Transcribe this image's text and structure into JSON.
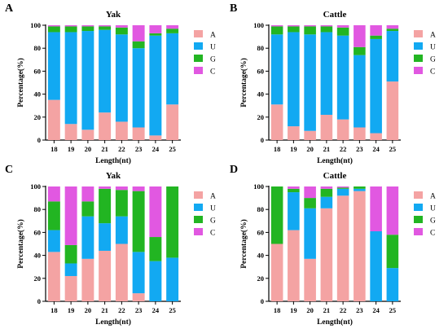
{
  "chart_data": [
    {
      "type": "bar",
      "stacked": true,
      "panel_letter": "A",
      "title": "Yak",
      "xlabel": "Length(nt)",
      "ylabel": "Percentage(%)",
      "ylim": [
        0,
        100
      ],
      "yticks": [
        0,
        20,
        40,
        60,
        80,
        100
      ],
      "categories": [
        "18",
        "19",
        "20",
        "21",
        "22",
        "23",
        "24",
        "25"
      ],
      "legend_position": "right",
      "series": [
        {
          "name": "A",
          "color": "#f4a3a3",
          "values": [
            35,
            14,
            9,
            24,
            16,
            11,
            4,
            31
          ]
        },
        {
          "name": "U",
          "color": "#12a9f2",
          "values": [
            59,
            80,
            86,
            72,
            76,
            69,
            87,
            62
          ]
        },
        {
          "name": "G",
          "color": "#22b522",
          "values": [
            5,
            5,
            4,
            3,
            6,
            6,
            2,
            4
          ]
        },
        {
          "name": "C",
          "color": "#e158e1",
          "values": [
            1,
            1,
            1,
            1,
            2,
            14,
            7,
            3
          ]
        }
      ]
    },
    {
      "type": "bar",
      "stacked": true,
      "panel_letter": "B",
      "title": "Cattle",
      "xlabel": "Length(nt)",
      "ylabel": "Percentage(%)",
      "ylim": [
        0,
        100
      ],
      "yticks": [
        0,
        20,
        40,
        60,
        80,
        100
      ],
      "categories": [
        "18",
        "19",
        "20",
        "21",
        "22",
        "23",
        "24",
        "25"
      ],
      "legend_position": "right",
      "series": [
        {
          "name": "A",
          "color": "#f4a3a3",
          "values": [
            31,
            12,
            8,
            22,
            18,
            11,
            6,
            51
          ]
        },
        {
          "name": "U",
          "color": "#12a9f2",
          "values": [
            61,
            82,
            84,
            72,
            73,
            63,
            82,
            44
          ]
        },
        {
          "name": "G",
          "color": "#22b522",
          "values": [
            7,
            5,
            7,
            5,
            7,
            7,
            3,
            2
          ]
        },
        {
          "name": "C",
          "color": "#e158e1",
          "values": [
            1,
            1,
            1,
            1,
            2,
            19,
            9,
            3
          ]
        }
      ]
    },
    {
      "type": "bar",
      "stacked": true,
      "panel_letter": "C",
      "title": "Yak",
      "xlabel": "Length(nt)",
      "ylabel": "Percentage(%)",
      "ylim": [
        0,
        100
      ],
      "yticks": [
        0,
        20,
        40,
        60,
        80,
        100
      ],
      "categories": [
        "18",
        "19",
        "20",
        "21",
        "22",
        "23",
        "24",
        "25"
      ],
      "legend_position": "right",
      "series": [
        {
          "name": "A",
          "color": "#f4a3a3",
          "values": [
            43,
            22,
            37,
            44,
            50,
            7,
            0,
            0
          ]
        },
        {
          "name": "U",
          "color": "#12a9f2",
          "values": [
            19,
            11,
            37,
            24,
            24,
            36,
            35,
            38
          ]
        },
        {
          "name": "G",
          "color": "#22b522",
          "values": [
            25,
            16,
            13,
            30,
            23,
            53,
            21,
            62
          ]
        },
        {
          "name": "C",
          "color": "#e158e1",
          "values": [
            13,
            51,
            13,
            2,
            3,
            4,
            44,
            0
          ]
        }
      ]
    },
    {
      "type": "bar",
      "stacked": true,
      "panel_letter": "D",
      "title": "Cattle",
      "xlabel": "Length(nt)",
      "ylabel": "Percentage(%)",
      "ylim": [
        0,
        100
      ],
      "yticks": [
        0,
        20,
        40,
        60,
        80,
        100
      ],
      "categories": [
        "18",
        "19",
        "20",
        "21",
        "22",
        "23",
        "24",
        "25"
      ],
      "legend_position": "right",
      "series": [
        {
          "name": "A",
          "color": "#f4a3a3",
          "values": [
            50,
            62,
            37,
            81,
            92,
            96,
            0,
            0
          ]
        },
        {
          "name": "U",
          "color": "#12a9f2",
          "values": [
            0,
            33,
            44,
            10,
            6,
            2,
            61,
            29
          ]
        },
        {
          "name": "G",
          "color": "#22b522",
          "values": [
            50,
            3,
            9,
            7,
            1,
            2,
            0,
            29
          ]
        },
        {
          "name": "C",
          "color": "#e158e1",
          "values": [
            0,
            2,
            10,
            2,
            1,
            0,
            39,
            42
          ]
        }
      ]
    }
  ]
}
